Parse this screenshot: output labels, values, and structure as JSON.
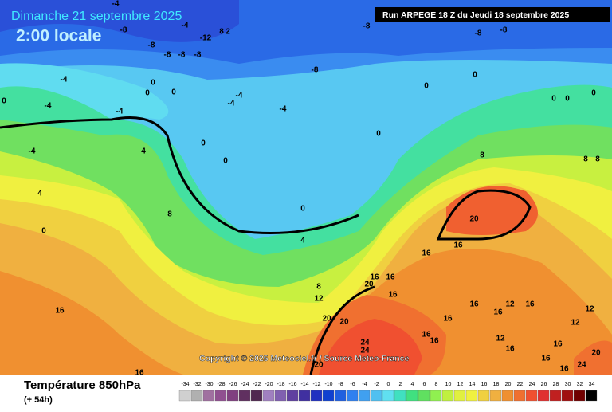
{
  "header": {
    "date": "Dimanche 21 septembre 2025",
    "time": "2:00 locale",
    "run": "Run ARPEGE 18 Z du Jeudi 18 septembre 2025"
  },
  "copyright": "Copyright © 2025 Meteociel.fr / Source Meteo-France",
  "footer": {
    "title": "Température 850hPa",
    "lead": "(+ 54h)"
  },
  "colorbar": {
    "ticks": [
      -34,
      -32,
      -30,
      -28,
      -26,
      -24,
      -22,
      -20,
      -18,
      -16,
      -14,
      -12,
      -10,
      -8,
      -6,
      -4,
      -2,
      0,
      2,
      4,
      6,
      8,
      10,
      12,
      14,
      16,
      18,
      20,
      22,
      24,
      26,
      28,
      30,
      32,
      34
    ],
    "colors": [
      "#d0d0d0",
      "#b0b0b0",
      "#a070a0",
      "#905090",
      "#804080",
      "#603060",
      "#502850",
      "#a080c0",
      "#8060b0",
      "#6040a0",
      "#4030a0",
      "#2030c0",
      "#1040d0",
      "#2060e0",
      "#3080f0",
      "#40a0f0",
      "#50c0f0",
      "#60e0f0",
      "#40e0c0",
      "#40e080",
      "#60e060",
      "#90f050",
      "#c0f040",
      "#e0f040",
      "#f0f040",
      "#f0d040",
      "#f0b040",
      "#f09030",
      "#f07030",
      "#f05030",
      "#e03030",
      "#c02020",
      "#a01010",
      "#700000",
      "#000000"
    ]
  },
  "contour_labels": [
    "-4",
    "-8",
    "-4",
    "-12",
    "8",
    "2",
    "-8",
    "-8",
    "-8",
    "-8",
    "-8",
    "-8",
    "-8",
    "-8",
    "-4",
    "0",
    "0",
    "0",
    "-4",
    "-4",
    "-4",
    "-4",
    "-4",
    "0",
    "-4",
    "4",
    "0",
    "4",
    "0",
    "0",
    "8",
    "0",
    "4",
    "0",
    "0",
    "0",
    "0",
    "0",
    "0",
    "8",
    "8",
    "8",
    "20",
    "16",
    "16",
    "8",
    "12",
    "20",
    "16",
    "16",
    "16",
    "20",
    "20",
    "24",
    "24",
    "16",
    "16",
    "16",
    "16",
    "12",
    "16",
    "16",
    "12",
    "12",
    "12",
    "16",
    "16",
    "20",
    "24",
    "16",
    "16",
    "16",
    "16",
    "20"
  ]
}
